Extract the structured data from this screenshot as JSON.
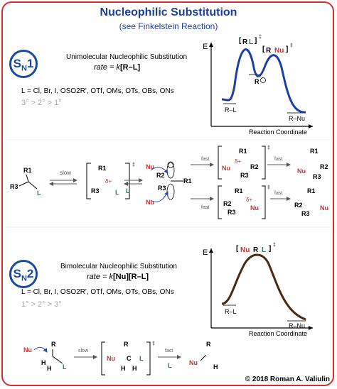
{
  "header": {
    "title": "Nucleophilic Substitution",
    "subtitle": "(see Finkelstein Reaction)"
  },
  "sn1": {
    "badge_main": "S",
    "badge_sub": "N",
    "badge_num": "1",
    "name": "Unimolecular Nucleophilic Substitution",
    "rate_prefix": "rate = ",
    "rate_k": "k",
    "rate_expr": "[R–L]",
    "leaving_groups": "L = Cl, Br, I, OSO2R', OTf, OMs, OTs, OBs, ONs",
    "reactivity": "3° > 2° > 1°"
  },
  "sn2": {
    "badge_main": "S",
    "badge_sub": "N",
    "badge_num": "2",
    "name": "Bimolecular Nucleophilic Substitution",
    "rate_prefix": "rate = ",
    "rate_k": "k",
    "rate_expr": "[Nu][R–L]",
    "leaving_groups": "L = Cl, Br, I, OSO2R', OTf, OMs, OTs, OBs, ONs",
    "reactivity": "1° > 2° > 3°"
  },
  "energy_diagram_1": {
    "y_label": "E",
    "x_label": "Reaction Coordinate",
    "reactant": "R–L",
    "intermediate": "R",
    "product": "R–Nu"
  },
  "energy_diagram_2": {
    "y_label": "E",
    "x_label": "Reaction Coordinate",
    "reactant": "R–L",
    "product": "R–Nu",
    "ts": "Nu···R···L"
  },
  "labels": {
    "slow": "slow",
    "fast": "fast",
    "nu": "Nu",
    "l": "L",
    "r": "R",
    "r1": "R1",
    "r2": "R2",
    "r3": "R3",
    "delta_plus": "δ+",
    "delta_minus": "δ–",
    "dagger": "‡",
    "h": "H"
  },
  "copyright": "© 2018 Roman A. Valiulin",
  "colors": {
    "accent": "#d62f2f",
    "title": "#1a3f9c",
    "leaving": "#1f7a6a",
    "curve": "#1f3fa8",
    "curve2": "#4a2a10"
  }
}
